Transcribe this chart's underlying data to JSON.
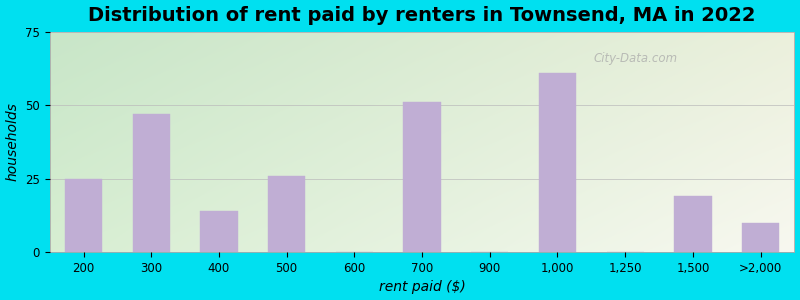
{
  "title": "Distribution of rent paid by renters in Townsend, MA in 2022",
  "xlabel": "rent paid ($)",
  "ylabel": "households",
  "categories": [
    "200",
    "300",
    "400",
    "500",
    "600",
    "700",
    "900",
    "1,000",
    "1,250",
    "1,500",
    ">2,000"
  ],
  "values": [
    25,
    47,
    14,
    26,
    0,
    51,
    0,
    61,
    0,
    19,
    10
  ],
  "bar_color": "#c0aed4",
  "ylim": [
    0,
    75
  ],
  "yticks": [
    0,
    25,
    50,
    75
  ],
  "background_outer": "#00e0f0",
  "bg_top_left": "#cde8c8",
  "bg_top_right": "#e8f0e0",
  "bg_bottom_left": "#ddf0d8",
  "bg_bottom_right": "#f8f8f0",
  "title_fontsize": 14,
  "axis_label_fontsize": 10,
  "tick_fontsize": 8.5,
  "watermark": "City-Data.com",
  "bar_width": 0.55
}
